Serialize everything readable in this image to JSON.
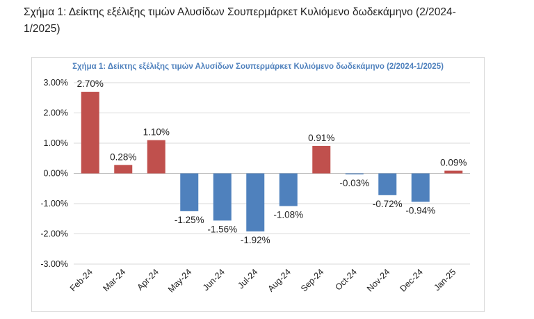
{
  "caption": "Σχήμα 1: Δείκτης εξέλιξης τιμών Αλυσίδων Σουπερμάρκετ Κυλιόμενο δωδεκάμηνο (2/2024-1/2025)",
  "chart_data": {
    "type": "bar",
    "title": "Σχήμα 1: Δείκτης εξέλιξης τιμών Αλυσίδων Σουπερμάρκετ Κυλιόμενο δωδεκάμηνο (2/2024-1/2025)",
    "xlabel": "",
    "ylabel": "",
    "categories": [
      "Feb-24",
      "Mar-24",
      "Apr-24",
      "May-24",
      "Jun-24",
      "Jul-24",
      "Aug-24",
      "Sep-24",
      "Oct-24",
      "Nov-24",
      "Dec-24",
      "Jan-25"
    ],
    "values": [
      2.7,
      0.28,
      1.1,
      -1.25,
      -1.56,
      -1.92,
      -1.08,
      0.91,
      -0.03,
      -0.72,
      -0.94,
      0.09
    ],
    "data_labels": [
      "2.70%",
      "0.28%",
      "1.10%",
      "-1.25%",
      "-1.56%",
      "-1.92%",
      "-1.08%",
      "0.91%",
      "-0.03%",
      "-0.72%",
      "-0.94%",
      "0.09%"
    ],
    "yticks": [
      3,
      2,
      1,
      0,
      -1,
      -2,
      -3
    ],
    "ytick_labels": [
      "3.00%",
      "2.00%",
      "1.00%",
      "0.00%",
      "-1.00%",
      "-2.00%",
      "-3.00%"
    ],
    "ylim": [
      -3,
      3
    ],
    "grid": true,
    "legend": "none",
    "colors": {
      "positive": "#c0504d",
      "negative": "#4f81bd",
      "grid": "#d9d9d9",
      "title": "#4f81bd"
    }
  }
}
